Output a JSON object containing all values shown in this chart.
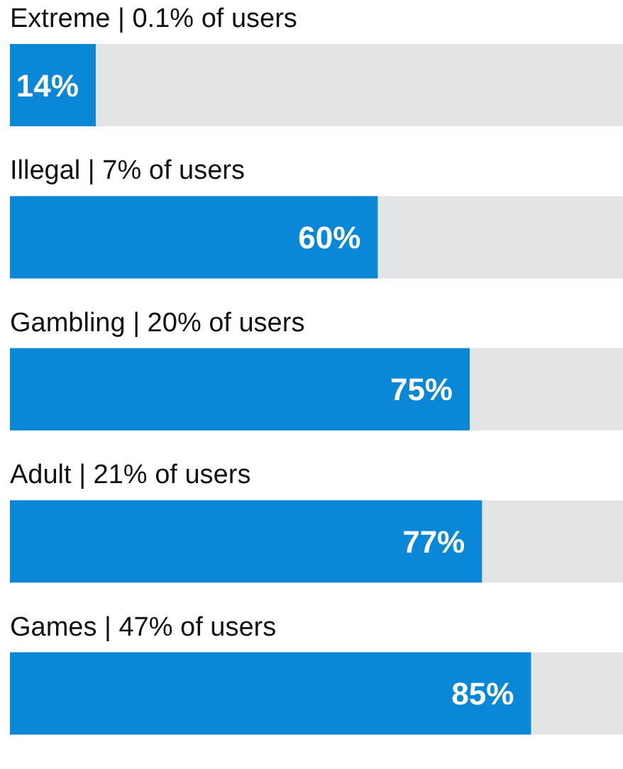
{
  "chart_data": {
    "type": "bar",
    "orientation": "horizontal",
    "categories": [
      "Extreme | 0.1% of users",
      "Illegal | 7% of users",
      "Gambling | 20% of users",
      "Adult | 21% of users",
      "Games | 47% of users"
    ],
    "values": [
      14,
      60,
      75,
      77,
      85
    ],
    "value_labels": [
      "14%",
      "60%",
      "75%",
      "77%",
      "85%"
    ],
    "color": "#0a87d6",
    "xlim": [
      0,
      100
    ]
  }
}
